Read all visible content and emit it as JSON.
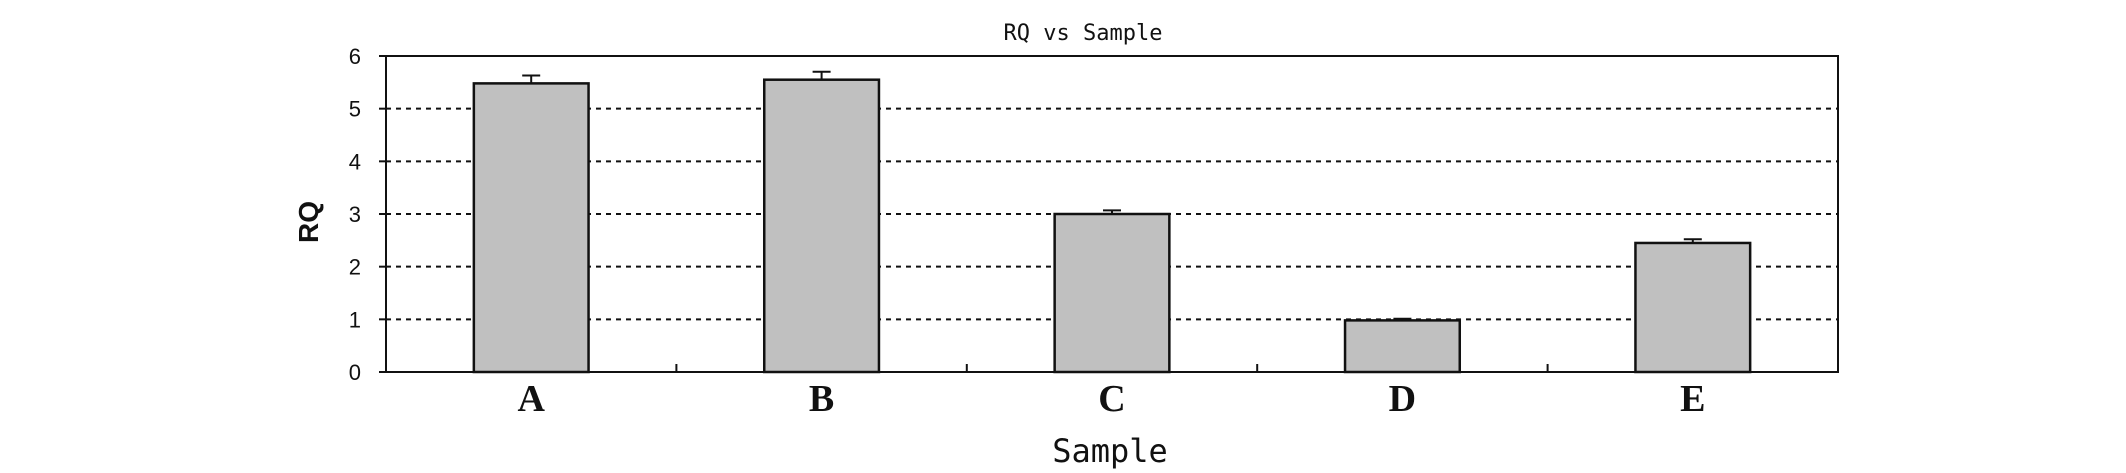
{
  "chart_data": {
    "type": "bar",
    "title": "RQ vs Sample",
    "xlabel": "Sample",
    "ylabel": "RQ",
    "categories": [
      "A",
      "B",
      "C",
      "D",
      "E"
    ],
    "values": [
      5.48,
      5.55,
      3.0,
      0.98,
      2.45
    ],
    "error": [
      0.15,
      0.15,
      0.07,
      0.03,
      0.07
    ],
    "ylim": [
      0,
      6
    ],
    "yticks": [
      "0",
      "1",
      "2",
      "3",
      "4",
      "5",
      "6"
    ],
    "grid": "horizontal dashed",
    "bar_color": "#c0c0c0",
    "edge_color": "#111111"
  }
}
